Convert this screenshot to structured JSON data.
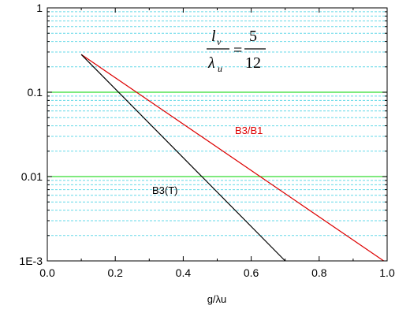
{
  "chart_data": {
    "type": "line",
    "title": "",
    "xlabel": "g/λu",
    "ylabel": "",
    "xlim": [
      0.0,
      1.0
    ],
    "ylim": [
      0.001,
      1
    ],
    "y_scale": "log",
    "x_ticks": [
      "0.0",
      "0.2",
      "0.4",
      "0.6",
      "0.8",
      "1.0"
    ],
    "y_ticks": [
      "1E-3",
      "0.01",
      "0.1",
      "1"
    ],
    "grid": {
      "major": true,
      "minor": true,
      "major_color": "#33dd33",
      "minor_color": "#66d9e8"
    },
    "legend": "none",
    "series": [
      {
        "name": "B3/B1",
        "color": "#dd0000",
        "x": [
          0.1,
          0.99
        ],
        "y": [
          0.28,
          0.001
        ]
      },
      {
        "name": "B3(T)",
        "color": "#000000",
        "x": [
          0.1,
          0.7
        ],
        "y": [
          0.28,
          0.001
        ]
      }
    ],
    "annotation": {
      "numerator_symbol": "l",
      "numerator_sub": "v",
      "denominator_symbol": "λ",
      "denominator_sub": "u",
      "equals": "=",
      "value_numerator": "5",
      "value_denominator": "12"
    }
  }
}
